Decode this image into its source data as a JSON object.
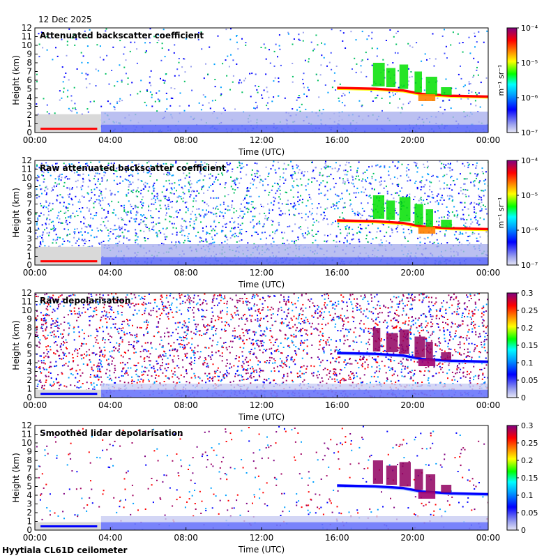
{
  "date": "12 Dec 2025",
  "footer": "Hyytiala CL61D ceilometer",
  "colors": {
    "background_noise": "#d9d9d9",
    "colormap": [
      "#e6e6f5",
      "#0000ff",
      "#00a0ff",
      "#00ffff",
      "#00ff00",
      "#ffff00",
      "#ff8000",
      "#ff0000",
      "#800080"
    ]
  },
  "chart_data": [
    {
      "type": "heatmap",
      "title": "Attenuated backscatter coefficient",
      "xlabel": "Time (UTC)",
      "ylabel": "Height (km)",
      "xticks": [
        "00:00",
        "04:00",
        "08:00",
        "12:00",
        "16:00",
        "20:00",
        "00:00"
      ],
      "yticks": [
        "0",
        "1",
        "2",
        "3",
        "4",
        "5",
        "6",
        "7",
        "8",
        "9",
        "10",
        "11",
        "12"
      ],
      "ylim": [
        0,
        12
      ],
      "colorbar": {
        "scale": "log",
        "range": [
          1e-07,
          0.0001
        ],
        "ticks": [
          "10⁻⁷",
          "10⁻⁶",
          "10⁻⁵",
          "10⁻⁴"
        ],
        "unit": "m⁻¹ sr⁻¹"
      }
    },
    {
      "type": "heatmap",
      "title": "Raw attenuated backscatter coefficient",
      "xlabel": "Time (UTC)",
      "ylabel": "Height (km)",
      "xticks": [
        "00:00",
        "04:00",
        "08:00",
        "12:00",
        "16:00",
        "20:00",
        "00:00"
      ],
      "yticks": [
        "0",
        "1",
        "2",
        "3",
        "4",
        "5",
        "6",
        "7",
        "8",
        "9",
        "10",
        "11",
        "12"
      ],
      "ylim": [
        0,
        12
      ],
      "colorbar": {
        "scale": "log",
        "range": [
          1e-07,
          0.0001
        ],
        "ticks": [
          "10⁻⁷",
          "10⁻⁶",
          "10⁻⁵",
          "10⁻⁴"
        ],
        "unit": "m⁻¹ sr⁻¹"
      }
    },
    {
      "type": "heatmap",
      "title": "Raw depolarisation",
      "xlabel": "Time (UTC)",
      "ylabel": "Height (km)",
      "xticks": [
        "00:00",
        "04:00",
        "08:00",
        "12:00",
        "16:00",
        "20:00",
        "00:00"
      ],
      "yticks": [
        "0",
        "1",
        "2",
        "3",
        "4",
        "5",
        "6",
        "7",
        "8",
        "9",
        "10",
        "11",
        "12"
      ],
      "ylim": [
        0,
        12
      ],
      "colorbar": {
        "scale": "linear",
        "range": [
          0,
          0.3
        ],
        "ticks": [
          "0",
          "0.05",
          "0.1",
          "0.15",
          "0.2",
          "0.25",
          "0.3"
        ],
        "unit": ""
      }
    },
    {
      "type": "heatmap",
      "title": "Smoothed lidar depolarisation",
      "xlabel": "Time (UTC)",
      "ylabel": "Height (km)",
      "xticks": [
        "00:00",
        "04:00",
        "08:00",
        "12:00",
        "16:00",
        "20:00",
        "00:00"
      ],
      "yticks": [
        "0",
        "1",
        "2",
        "3",
        "4",
        "5",
        "6",
        "7",
        "8",
        "9",
        "10",
        "11",
        "12"
      ],
      "ylim": [
        0,
        12
      ],
      "colorbar": {
        "scale": "linear",
        "range": [
          0,
          0.3
        ],
        "ticks": [
          "0",
          "0.05",
          "0.1",
          "0.15",
          "0.2",
          "0.25",
          "0.3"
        ],
        "unit": ""
      }
    }
  ]
}
